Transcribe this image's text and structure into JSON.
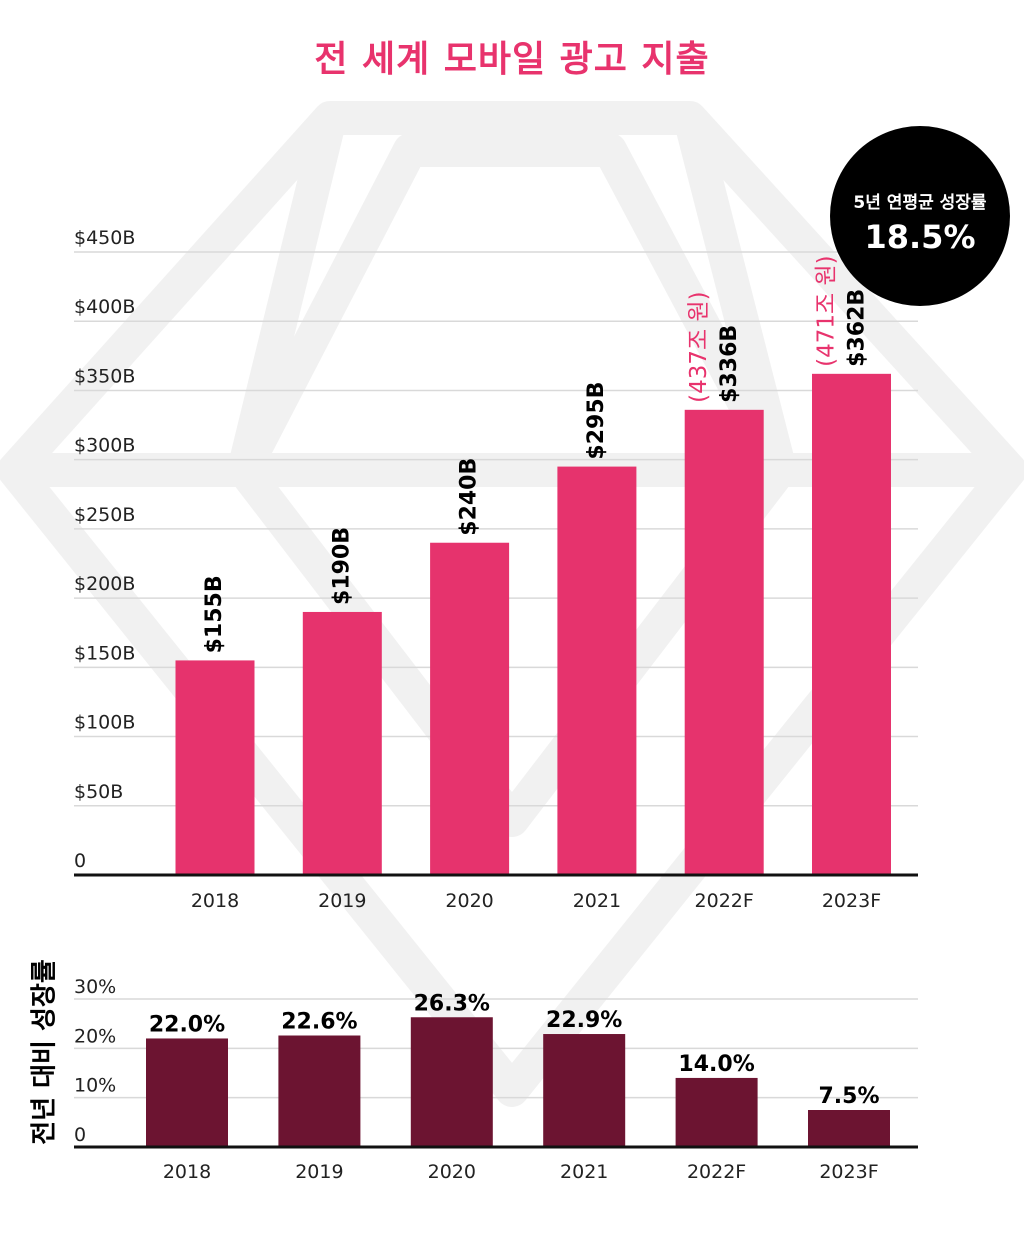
{
  "title": "전 세계 모바일 광고 지출",
  "badge": {
    "label": "5년 연평균 성장률",
    "value": "18.5%"
  },
  "colors": {
    "accent": "#e8336d",
    "bar_main": "#e6336d",
    "bar_growth": "#6c1431",
    "axis": "#111111",
    "grid": "#d9d9d9"
  },
  "chart_data": [
    {
      "type": "bar",
      "title": "전 세계 모바일 광고 지출",
      "categories": [
        "2018",
        "2019",
        "2020",
        "2021",
        "2022F",
        "2023F"
      ],
      "values": [
        155,
        190,
        240,
        295,
        336,
        362
      ],
      "value_labels": [
        "$155B",
        "$190B",
        "$240B",
        "$295B",
        "$336B",
        "$362B"
      ],
      "annotations": [
        {
          "category": "2022F",
          "text": "(437조 원)"
        },
        {
          "category": "2023F",
          "text": "(471조 원)"
        }
      ],
      "ylim": [
        0,
        450
      ],
      "yticks": [
        0,
        50,
        100,
        150,
        200,
        250,
        300,
        350,
        400,
        450
      ],
      "ytick_labels": [
        "0",
        "$50B",
        "$100B",
        "$150B",
        "$200B",
        "$250B",
        "$300B",
        "$350B",
        "$400B",
        "$450B"
      ],
      "xlabel": "",
      "ylabel": "",
      "grid": true
    },
    {
      "type": "bar",
      "title": "",
      "categories": [
        "2018",
        "2019",
        "2020",
        "2021",
        "2022F",
        "2023F"
      ],
      "values": [
        22.0,
        22.6,
        26.3,
        22.9,
        14.0,
        7.5
      ],
      "value_labels": [
        "22.0%",
        "22.6%",
        "26.3%",
        "22.9%",
        "14.0%",
        "7.5%"
      ],
      "ylim": [
        0,
        30
      ],
      "yticks": [
        0,
        10,
        20,
        30
      ],
      "ytick_labels": [
        "0",
        "10%",
        "20%",
        "30%"
      ],
      "xlabel": "",
      "ylabel": "전년 대비 성장률",
      "grid": true
    }
  ]
}
